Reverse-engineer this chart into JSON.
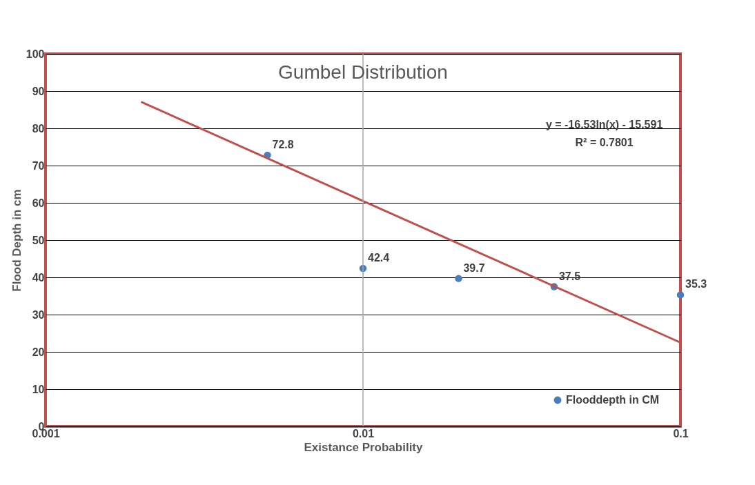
{
  "chart_data": {
    "type": "scatter",
    "title": "Gumbel Distribution",
    "xlabel": "Existance Probability",
    "ylabel": "Flood Depth in cm",
    "x": [
      0.005,
      0.01,
      0.02,
      0.04,
      0.1
    ],
    "series": [
      {
        "name": "Flooddepth in CM",
        "color": "#4a7ebb",
        "values": [
          72.8,
          42.4,
          39.7,
          37.5,
          35.3
        ],
        "value_labels": [
          "72.8",
          "42.4",
          "39.7",
          "37.5",
          "35.3"
        ]
      },
      {
        "type": "line",
        "color": "#c0504d",
        "marker": "none",
        "x": [
          0.002,
          0.01,
          0.1
        ],
        "values": [
          87.1,
          60.5,
          22.5
        ]
      }
    ],
    "log": "x",
    "xlim": [
      0.001,
      0.1
    ],
    "xticks": [
      0.001,
      0.01,
      0.1
    ],
    "ylim": [
      0,
      100
    ],
    "yticks": [
      0,
      10,
      20,
      30,
      40,
      50,
      60,
      70,
      80,
      90,
      100
    ],
    "grid": "y",
    "ref_lines": [
      {
        "axis": "x",
        "value": 0.01,
        "color": "#a6a6a6"
      }
    ],
    "legend": "bottom right",
    "marker": "circle",
    "annotations": [
      "y = -16.53ln(x) - 15.591",
      "R² = 0.7801"
    ]
  }
}
